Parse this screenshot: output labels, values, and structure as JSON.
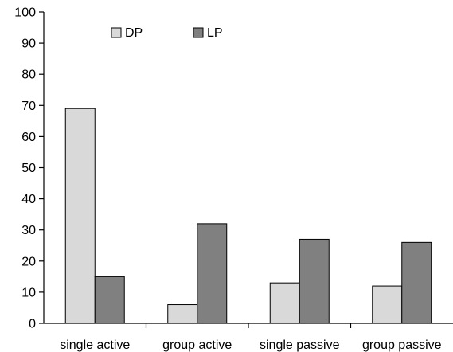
{
  "chart_data": {
    "type": "bar",
    "categories": [
      "single active",
      "group active",
      "single passive",
      "group passive"
    ],
    "series": [
      {
        "name": "DP",
        "values": [
          69,
          6,
          13,
          12
        ],
        "color": "#d9d9d9"
      },
      {
        "name": "LP",
        "values": [
          15,
          32,
          27,
          26
        ],
        "color": "#808080"
      }
    ],
    "ylim": [
      0,
      100
    ],
    "yticks": [
      0,
      10,
      20,
      30,
      40,
      50,
      60,
      70,
      80,
      90,
      100
    ],
    "legend_position": "top-left",
    "grid": false,
    "bar_outline_color": "#000000"
  }
}
